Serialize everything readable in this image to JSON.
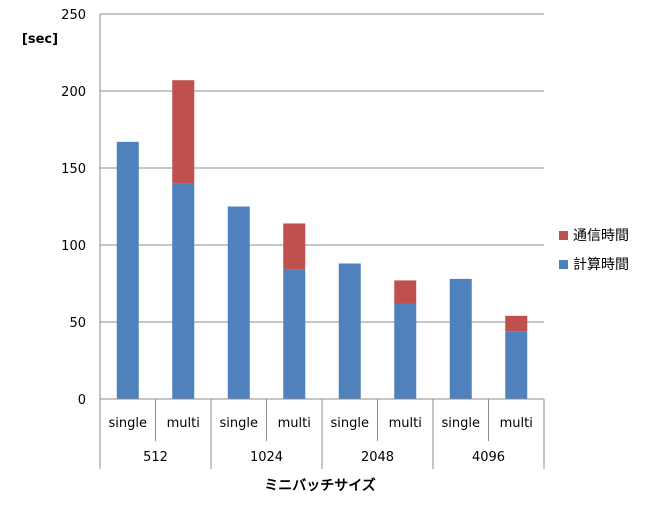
{
  "chart_data": {
    "type": "bar",
    "stacked": true,
    "title": "",
    "ylabel": "[sec]",
    "xlabel": "ミニバッチサイズ",
    "ylim": [
      0,
      250
    ],
    "yticks": [
      0,
      50,
      100,
      150,
      200,
      250
    ],
    "grid": true,
    "legend_position": "right",
    "groups": [
      "512",
      "1024",
      "2048",
      "4096"
    ],
    "subcategories": [
      "single",
      "multi"
    ],
    "categories": [
      "512 single",
      "512 multi",
      "1024 single",
      "1024 multi",
      "2048 single",
      "2048 multi",
      "4096 single",
      "4096 multi"
    ],
    "series": [
      {
        "name": "計算時間",
        "color": "#4f81bd",
        "values": [
          167,
          140,
          125,
          84,
          88,
          62,
          78,
          44
        ]
      },
      {
        "name": "通信時間",
        "color": "#c0504d",
        "values": [
          0,
          67,
          0,
          30,
          0,
          15,
          0,
          10
        ]
      }
    ]
  }
}
